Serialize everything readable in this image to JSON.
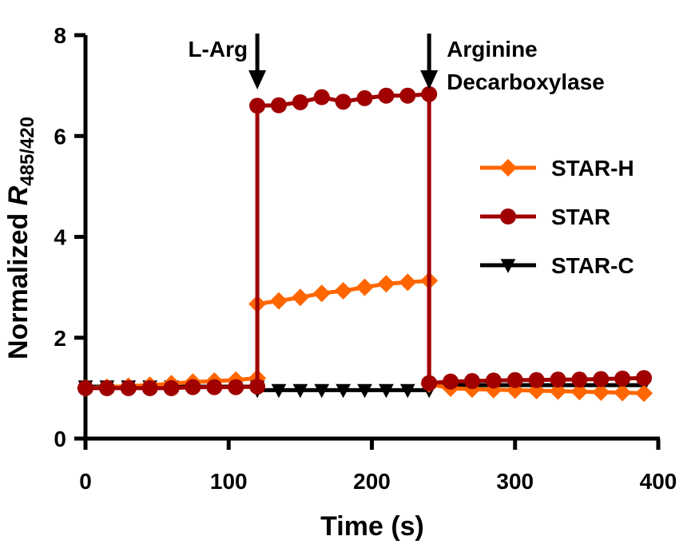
{
  "chart_data": {
    "type": "line",
    "title": "",
    "xlabel": "Time (s)",
    "ylabel_prefix": "Normalized ",
    "ylabel_var": "R",
    "ylabel_sub": "485/420",
    "xlim": [
      0,
      400
    ],
    "ylim": [
      0,
      8
    ],
    "xticks": [
      0,
      100,
      200,
      300,
      400
    ],
    "yticks": [
      0,
      2,
      4,
      6,
      8
    ],
    "grid": false,
    "legend_position": "right",
    "annotations": [
      {
        "text": "L-Arg",
        "x": 120
      },
      {
        "text": "Arginine",
        "text2": "Decarboxylase",
        "x": 240
      }
    ],
    "series": [
      {
        "name": "STAR-C",
        "color": "#000000",
        "marker": "triangle-down",
        "x": [
          0,
          15,
          30,
          45,
          60,
          75,
          90,
          105,
          120,
          120,
          135,
          150,
          165,
          180,
          195,
          210,
          225,
          240,
          240,
          255,
          270,
          285,
          300,
          315,
          330,
          345,
          360,
          375,
          390
        ],
        "y": [
          1.03,
          1.03,
          1.03,
          1.03,
          1.03,
          1.03,
          1.03,
          1.03,
          1.03,
          0.96,
          0.96,
          0.96,
          0.96,
          0.96,
          0.96,
          0.96,
          0.96,
          0.96,
          1.06,
          1.06,
          1.06,
          1.06,
          1.06,
          1.06,
          1.06,
          1.06,
          1.06,
          1.06,
          1.06
        ]
      },
      {
        "name": "STAR-H",
        "color": "#ff6600",
        "marker": "diamond",
        "x": [
          0,
          15,
          30,
          45,
          60,
          75,
          90,
          105,
          120,
          120,
          135,
          150,
          165,
          180,
          195,
          210,
          225,
          240,
          240,
          255,
          270,
          285,
          300,
          315,
          330,
          345,
          360,
          375,
          390
        ],
        "y": [
          1.0,
          1.02,
          1.04,
          1.06,
          1.09,
          1.12,
          1.14,
          1.16,
          1.2,
          2.67,
          2.73,
          2.8,
          2.88,
          2.93,
          3.0,
          3.07,
          3.1,
          3.13,
          1.08,
          1.0,
          0.98,
          0.97,
          0.96,
          0.95,
          0.94,
          0.93,
          0.92,
          0.91,
          0.9
        ]
      },
      {
        "name": "STAR",
        "color": "#a00000",
        "marker": "circle",
        "x": [
          0,
          15,
          30,
          45,
          60,
          75,
          90,
          105,
          120,
          120,
          135,
          150,
          165,
          180,
          195,
          210,
          225,
          240,
          240,
          255,
          270,
          285,
          300,
          315,
          330,
          345,
          360,
          375,
          390
        ],
        "y": [
          1.0,
          1.0,
          1.0,
          1.0,
          1.0,
          1.02,
          1.02,
          1.02,
          1.03,
          6.6,
          6.61,
          6.67,
          6.77,
          6.68,
          6.75,
          6.8,
          6.8,
          6.83,
          1.1,
          1.13,
          1.14,
          1.15,
          1.16,
          1.16,
          1.17,
          1.17,
          1.18,
          1.19,
          1.2
        ]
      }
    ],
    "legend_order": [
      "STAR-H",
      "STAR",
      "STAR-C"
    ]
  }
}
